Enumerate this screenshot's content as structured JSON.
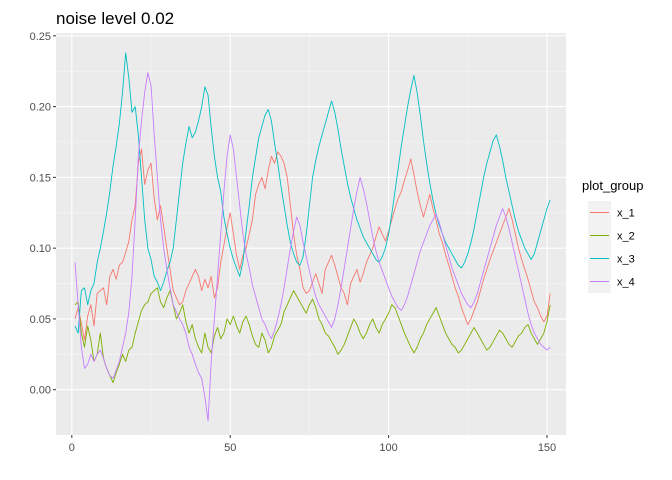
{
  "chart_data": {
    "type": "line",
    "title": "noise level 0.02",
    "xlabel": "",
    "ylabel": "",
    "xlim": [
      -5,
      156
    ],
    "ylim": [
      -0.032,
      0.252
    ],
    "xticks": [
      0,
      50,
      100,
      150
    ],
    "xtick_labels": [
      "0",
      "50",
      "100",
      "150"
    ],
    "yticks": [
      0.0,
      0.05,
      0.1,
      0.15,
      0.2,
      0.25
    ],
    "ytick_labels": [
      "0.00",
      "0.05",
      "0.10",
      "0.15",
      "0.20",
      "0.25"
    ],
    "grid": true,
    "legend": {
      "title": "plot_group",
      "position": "right"
    },
    "x": [
      1,
      2,
      3,
      4,
      5,
      6,
      7,
      8,
      9,
      10,
      11,
      12,
      13,
      14,
      15,
      16,
      17,
      18,
      19,
      20,
      21,
      22,
      23,
      24,
      25,
      26,
      27,
      28,
      29,
      30,
      31,
      32,
      33,
      34,
      35,
      36,
      37,
      38,
      39,
      40,
      41,
      42,
      43,
      44,
      45,
      46,
      47,
      48,
      49,
      50,
      51,
      52,
      53,
      54,
      55,
      56,
      57,
      58,
      59,
      60,
      61,
      62,
      63,
      64,
      65,
      66,
      67,
      68,
      69,
      70,
      71,
      72,
      73,
      74,
      75,
      76,
      77,
      78,
      79,
      80,
      81,
      82,
      83,
      84,
      85,
      86,
      87,
      88,
      89,
      90,
      91,
      92,
      93,
      94,
      95,
      96,
      97,
      98,
      99,
      100,
      101,
      102,
      103,
      104,
      105,
      106,
      107,
      108,
      109,
      110,
      111,
      112,
      113,
      114,
      115,
      116,
      117,
      118,
      119,
      120,
      121,
      122,
      123,
      124,
      125,
      126,
      127,
      128,
      129,
      130,
      131,
      132,
      133,
      134,
      135,
      136,
      137,
      138,
      139,
      140,
      141,
      142,
      143,
      144,
      145,
      146,
      147,
      148,
      149,
      150,
      151
    ],
    "series": [
      {
        "name": "x_1",
        "color": "#F8766D",
        "values": [
          0.05,
          0.058,
          0.047,
          0.035,
          0.052,
          0.06,
          0.045,
          0.068,
          0.07,
          0.072,
          0.06,
          0.08,
          0.085,
          0.078,
          0.088,
          0.09,
          0.097,
          0.105,
          0.12,
          0.13,
          0.16,
          0.17,
          0.145,
          0.155,
          0.16,
          0.135,
          0.12,
          0.13,
          0.115,
          0.1,
          0.085,
          0.07,
          0.065,
          0.06,
          0.062,
          0.07,
          0.075,
          0.08,
          0.085,
          0.08,
          0.07,
          0.078,
          0.072,
          0.08,
          0.065,
          0.072,
          0.09,
          0.102,
          0.115,
          0.125,
          0.11,
          0.095,
          0.085,
          0.095,
          0.1,
          0.11,
          0.12,
          0.138,
          0.145,
          0.15,
          0.142,
          0.155,
          0.165,
          0.16,
          0.168,
          0.165,
          0.16,
          0.15,
          0.13,
          0.11,
          0.095,
          0.085,
          0.072,
          0.068,
          0.07,
          0.076,
          0.082,
          0.075,
          0.068,
          0.085,
          0.09,
          0.095,
          0.088,
          0.08,
          0.072,
          0.068,
          0.06,
          0.075,
          0.08,
          0.085,
          0.076,
          0.082,
          0.09,
          0.095,
          0.1,
          0.108,
          0.115,
          0.11,
          0.105,
          0.112,
          0.12,
          0.128,
          0.135,
          0.14,
          0.148,
          0.155,
          0.163,
          0.152,
          0.14,
          0.13,
          0.122,
          0.13,
          0.138,
          0.128,
          0.12,
          0.11,
          0.104,
          0.095,
          0.088,
          0.08,
          0.072,
          0.066,
          0.058,
          0.052,
          0.046,
          0.05,
          0.056,
          0.062,
          0.07,
          0.078,
          0.085,
          0.092,
          0.098,
          0.104,
          0.11,
          0.116,
          0.122,
          0.128,
          0.12,
          0.11,
          0.1,
          0.092,
          0.085,
          0.078,
          0.07,
          0.062,
          0.058,
          0.052,
          0.048,
          0.052,
          0.068
        ]
      },
      {
        "name": "x_2",
        "color": "#7CAE00",
        "values": [
          0.06,
          0.062,
          0.04,
          0.03,
          0.045,
          0.035,
          0.02,
          0.025,
          0.04,
          0.022,
          0.015,
          0.01,
          0.005,
          0.012,
          0.018,
          0.025,
          0.02,
          0.028,
          0.03,
          0.04,
          0.048,
          0.056,
          0.06,
          0.062,
          0.068,
          0.07,
          0.072,
          0.062,
          0.058,
          0.065,
          0.07,
          0.06,
          0.05,
          0.054,
          0.06,
          0.048,
          0.04,
          0.046,
          0.036,
          0.03,
          0.026,
          0.04,
          0.03,
          0.026,
          0.038,
          0.044,
          0.036,
          0.04,
          0.05,
          0.046,
          0.052,
          0.045,
          0.04,
          0.048,
          0.052,
          0.046,
          0.038,
          0.032,
          0.03,
          0.04,
          0.035,
          0.026,
          0.03,
          0.038,
          0.042,
          0.046,
          0.055,
          0.06,
          0.065,
          0.07,
          0.066,
          0.062,
          0.058,
          0.054,
          0.06,
          0.064,
          0.058,
          0.05,
          0.046,
          0.04,
          0.038,
          0.034,
          0.03,
          0.025,
          0.028,
          0.032,
          0.038,
          0.044,
          0.05,
          0.046,
          0.04,
          0.036,
          0.04,
          0.046,
          0.05,
          0.044,
          0.04,
          0.046,
          0.05,
          0.054,
          0.06,
          0.058,
          0.052,
          0.046,
          0.04,
          0.035,
          0.03,
          0.026,
          0.03,
          0.036,
          0.04,
          0.046,
          0.05,
          0.054,
          0.058,
          0.052,
          0.046,
          0.04,
          0.036,
          0.032,
          0.03,
          0.026,
          0.028,
          0.032,
          0.036,
          0.04,
          0.044,
          0.04,
          0.036,
          0.032,
          0.028,
          0.03,
          0.034,
          0.038,
          0.042,
          0.04,
          0.036,
          0.032,
          0.03,
          0.034,
          0.038,
          0.04,
          0.044,
          0.046,
          0.04,
          0.036,
          0.032,
          0.036,
          0.04,
          0.048,
          0.06
        ]
      },
      {
        "name": "x_3",
        "color": "#00BFC4",
        "values": [
          0.045,
          0.04,
          0.07,
          0.072,
          0.06,
          0.07,
          0.075,
          0.09,
          0.1,
          0.112,
          0.125,
          0.14,
          0.158,
          0.172,
          0.188,
          0.21,
          0.238,
          0.22,
          0.196,
          0.2,
          0.18,
          0.15,
          0.12,
          0.1,
          0.092,
          0.08,
          0.076,
          0.07,
          0.076,
          0.084,
          0.09,
          0.1,
          0.12,
          0.14,
          0.16,
          0.174,
          0.186,
          0.178,
          0.182,
          0.19,
          0.2,
          0.214,
          0.208,
          0.185,
          0.165,
          0.15,
          0.14,
          0.122,
          0.11,
          0.1,
          0.092,
          0.086,
          0.08,
          0.09,
          0.112,
          0.13,
          0.15,
          0.164,
          0.178,
          0.186,
          0.194,
          0.198,
          0.19,
          0.174,
          0.16,
          0.144,
          0.13,
          0.116,
          0.104,
          0.096,
          0.09,
          0.088,
          0.094,
          0.11,
          0.13,
          0.15,
          0.162,
          0.172,
          0.18,
          0.188,
          0.196,
          0.204,
          0.196,
          0.184,
          0.17,
          0.158,
          0.146,
          0.136,
          0.128,
          0.12,
          0.114,
          0.108,
          0.104,
          0.1,
          0.096,
          0.092,
          0.09,
          0.094,
          0.1,
          0.11,
          0.124,
          0.14,
          0.156,
          0.172,
          0.186,
          0.2,
          0.212,
          0.222,
          0.21,
          0.194,
          0.176,
          0.16,
          0.146,
          0.134,
          0.124,
          0.116,
          0.11,
          0.104,
          0.1,
          0.096,
          0.092,
          0.088,
          0.086,
          0.09,
          0.096,
          0.104,
          0.114,
          0.126,
          0.138,
          0.15,
          0.16,
          0.168,
          0.176,
          0.18,
          0.172,
          0.162,
          0.15,
          0.14,
          0.13,
          0.12,
          0.112,
          0.106,
          0.1,
          0.096,
          0.092,
          0.096,
          0.104,
          0.112,
          0.12,
          0.128,
          0.134
        ]
      },
      {
        "name": "x_4",
        "color": "#C77CFF",
        "values": [
          0.09,
          0.06,
          0.03,
          0.015,
          0.018,
          0.025,
          0.02,
          0.025,
          0.028,
          0.022,
          0.015,
          0.01,
          0.008,
          0.014,
          0.02,
          0.03,
          0.04,
          0.055,
          0.08,
          0.12,
          0.165,
          0.19,
          0.21,
          0.224,
          0.215,
          0.18,
          0.15,
          0.12,
          0.1,
          0.085,
          0.072,
          0.06,
          0.055,
          0.05,
          0.046,
          0.04,
          0.03,
          0.025,
          0.018,
          0.012,
          0.008,
          -0.005,
          -0.022,
          0.02,
          0.05,
          0.08,
          0.11,
          0.14,
          0.165,
          0.18,
          0.17,
          0.15,
          0.13,
          0.11,
          0.096,
          0.086,
          0.074,
          0.066,
          0.058,
          0.05,
          0.046,
          0.04,
          0.036,
          0.042,
          0.05,
          0.06,
          0.072,
          0.086,
          0.1,
          0.112,
          0.122,
          0.116,
          0.104,
          0.094,
          0.084,
          0.074,
          0.066,
          0.06,
          0.056,
          0.052,
          0.048,
          0.044,
          0.05,
          0.06,
          0.072,
          0.086,
          0.1,
          0.114,
          0.128,
          0.14,
          0.15,
          0.142,
          0.132,
          0.12,
          0.108,
          0.098,
          0.09,
          0.084,
          0.078,
          0.072,
          0.066,
          0.062,
          0.058,
          0.056,
          0.06,
          0.066,
          0.074,
          0.082,
          0.09,
          0.098,
          0.104,
          0.11,
          0.116,
          0.12,
          0.124,
          0.118,
          0.11,
          0.102,
          0.094,
          0.086,
          0.08,
          0.074,
          0.068,
          0.064,
          0.06,
          0.058,
          0.062,
          0.068,
          0.076,
          0.084,
          0.092,
          0.1,
          0.108,
          0.116,
          0.122,
          0.128,
          0.122,
          0.114,
          0.104,
          0.094,
          0.084,
          0.074,
          0.064,
          0.054,
          0.046,
          0.04,
          0.036,
          0.032,
          0.03,
          0.028,
          0.03
        ]
      }
    ]
  }
}
